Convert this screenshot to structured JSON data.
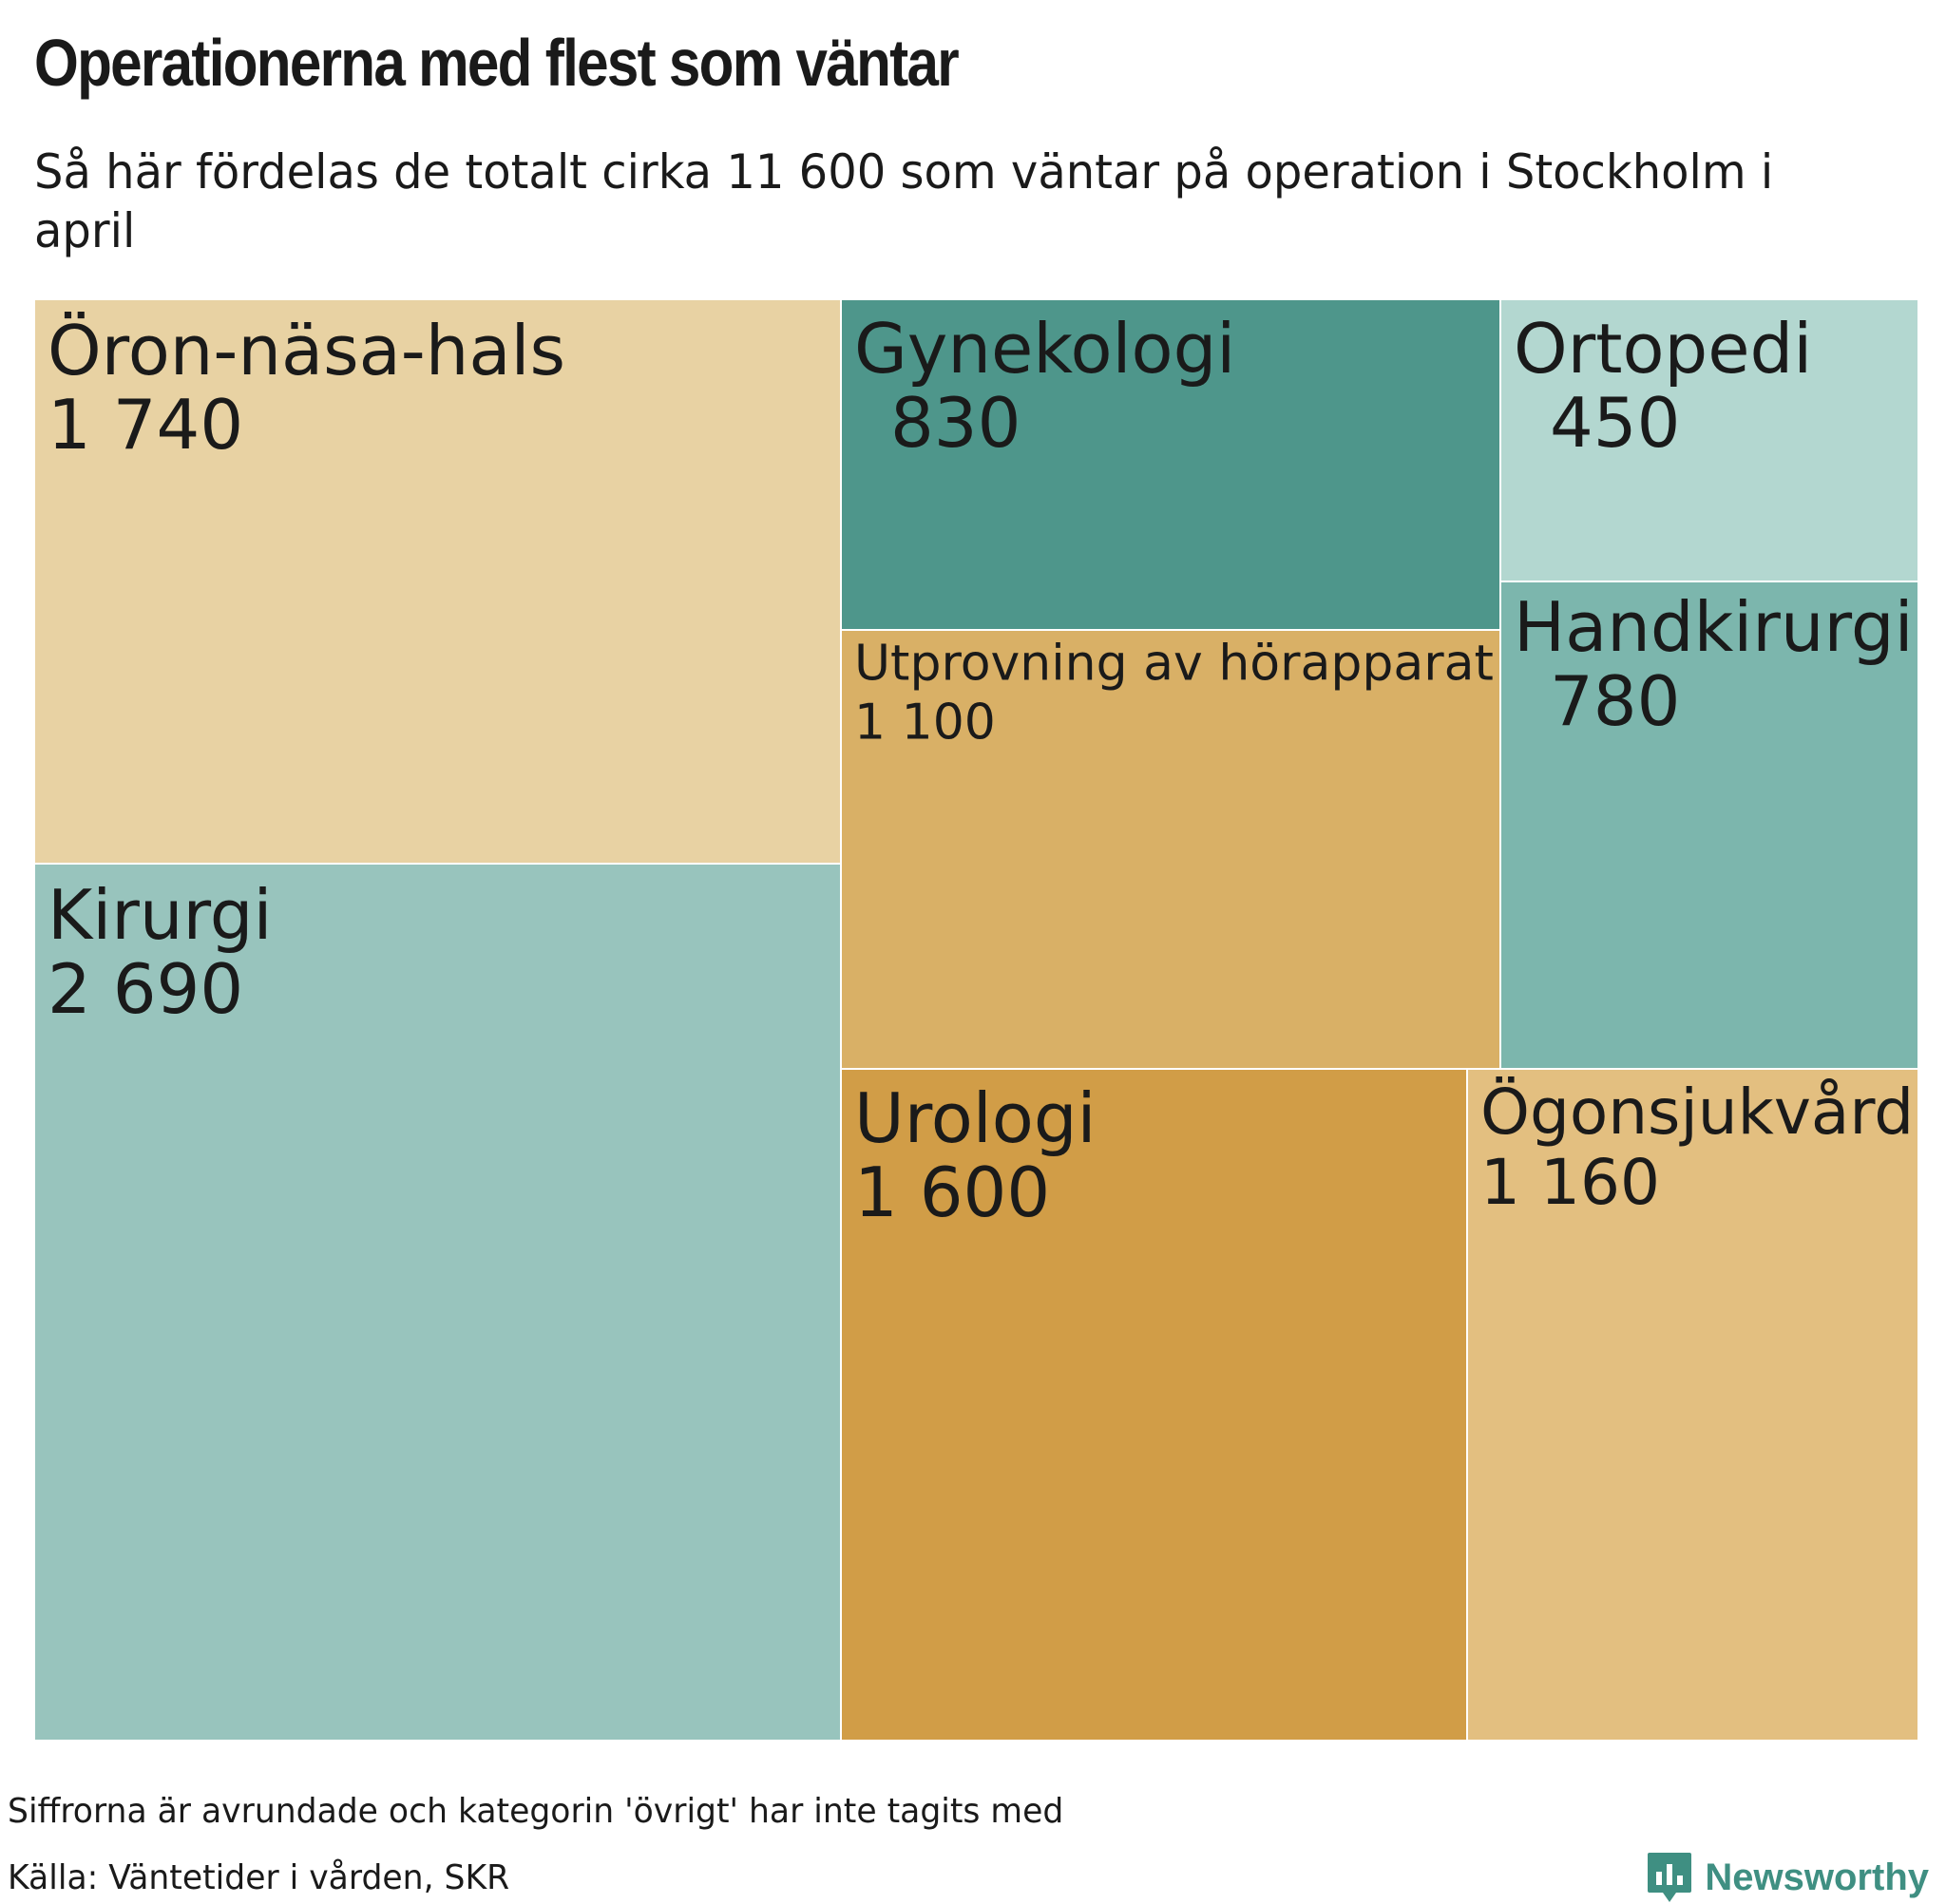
{
  "title": "Operationerna med flest som väntar",
  "subtitle": "Så här fördelas de totalt cirka 11 600 som väntar på operation i Stockholm i april",
  "footnote": "Siffrorna är avrundade och kategorin 'övrigt' har inte tagits med",
  "source": "Källa: Väntetider i vården, SKR",
  "brand": "Newsworthy",
  "colors": {
    "brand": "#3f8f82",
    "border": "#ffffff"
  },
  "chart_data": {
    "type": "treemap",
    "title": "Operationerna med flest som väntar",
    "items": [
      {
        "name": "Öron-näsa-hals",
        "label": "1 740",
        "value": 1740,
        "color": "#e8d2a3"
      },
      {
        "name": "Kirurgi",
        "label": "2 690",
        "value": 2690,
        "color": "#98c4bd"
      },
      {
        "name": "Gynekologi",
        "label": "830",
        "value": 830,
        "color": "#4e968b"
      },
      {
        "name": "Utprovning av hörapparat",
        "label": "1 100",
        "value": 1100,
        "color": "#d9b066"
      },
      {
        "name": "Urologi",
        "label": "1 600",
        "value": 1600,
        "color": "#d19d47"
      },
      {
        "name": "Ortopedi",
        "label": "450",
        "value": 450,
        "color": "#b3d7d0"
      },
      {
        "name": "Handkirurgi",
        "label": "780",
        "value": 780,
        "color": "#7cb6ad"
      },
      {
        "name": "Ögonsjukvård",
        "label": "1 160",
        "value": 1160,
        "color": "#e3bf80"
      }
    ]
  }
}
